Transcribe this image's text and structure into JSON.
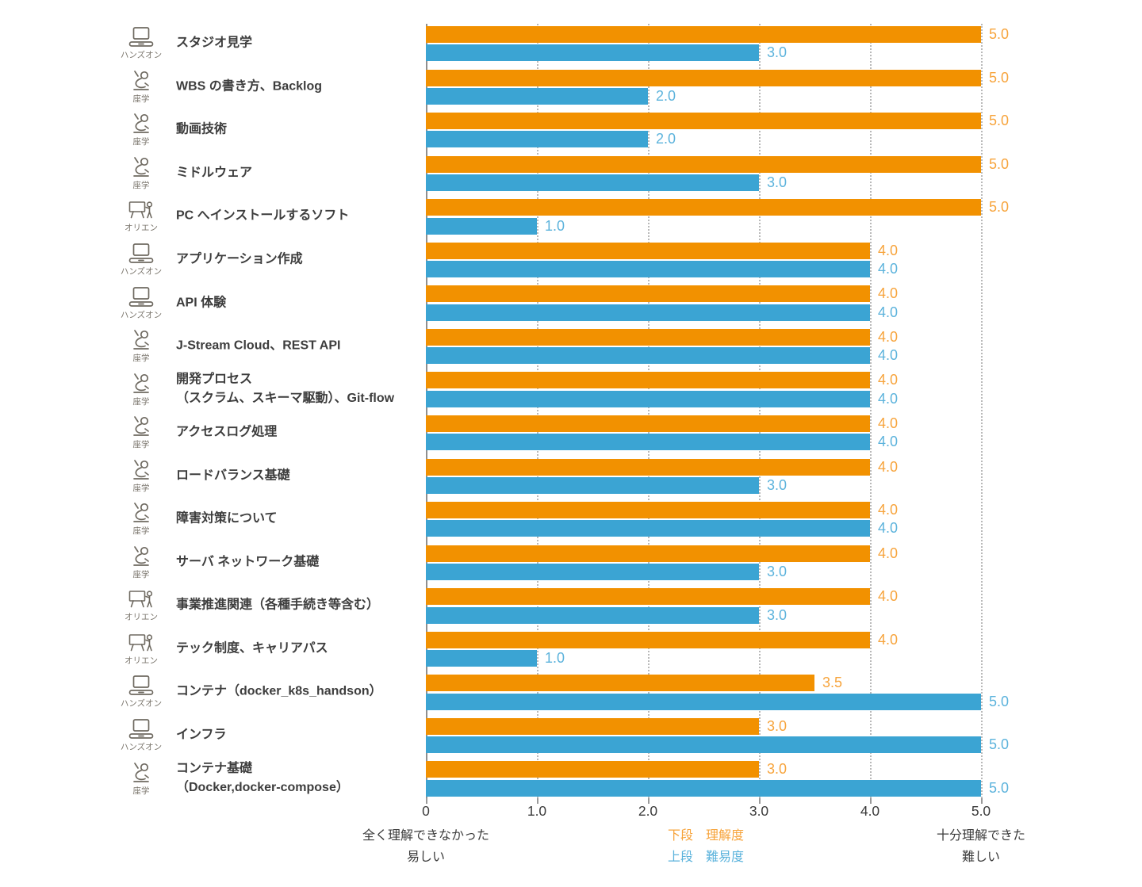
{
  "chart_data": {
    "type": "bar",
    "orientation": "horizontal",
    "xlim": [
      0,
      5
    ],
    "x_ticks": [
      "0",
      "1.0",
      "2.0",
      "3.0",
      "4.0",
      "5.0"
    ],
    "grid": "vertical dotted gridlines at each 1.0 unit",
    "legend_position": "bottom-center",
    "categories": [
      "スタジオ見学",
      "WBS の書き方、Backlog",
      "動画技術",
      "ミドルウェア",
      "PC へインストールするソフト",
      "アプリケーション作成",
      "API 体験",
      "J-Stream Cloud、REST API",
      "開発プロセス\n（スクラム、スキーマ駆動）、Git-flow",
      "アクセスログ処理",
      "ロードバランス基礎",
      "障害対策について",
      "サーバ ネットワーク基礎",
      "事業推進関連（各種手続き等含む）",
      "テック制度、キャリアパス",
      "コンテナ（docker_k8s_handson）",
      "インフラ",
      "コンテナ基礎\n（Docker,docker-compose）"
    ],
    "category_types": [
      "ハンズオン",
      "座学",
      "座学",
      "座学",
      "オリエン",
      "ハンズオン",
      "ハンズオン",
      "座学",
      "座学",
      "座学",
      "座学",
      "座学",
      "座学",
      "オリエン",
      "オリエン",
      "ハンズオン",
      "ハンズオン",
      "座学"
    ],
    "series": [
      {
        "name": "理解度",
        "row_position": "下段",
        "color": "#f29100",
        "label_color": "#f7a43c",
        "values": [
          5.0,
          5.0,
          5.0,
          5.0,
          5.0,
          4.0,
          4.0,
          4.0,
          4.0,
          4.0,
          4.0,
          4.0,
          4.0,
          4.0,
          4.0,
          3.5,
          3.0,
          3.0
        ],
        "labels": [
          "5.0",
          "5.0",
          "5.0",
          "5.0",
          "5.0",
          "4.0",
          "4.0",
          "4.0",
          "4.0",
          "4.0",
          "4.0",
          "4.0",
          "4.0",
          "4.0",
          "4.0",
          "3.5",
          "3.0",
          "3.0"
        ]
      },
      {
        "name": "難易度",
        "row_position": "上段",
        "color": "#3ba4d3",
        "label_color": "#5cb3dc",
        "values": [
          3.0,
          2.0,
          2.0,
          3.0,
          1.0,
          4.0,
          4.0,
          4.0,
          4.0,
          4.0,
          3.0,
          4.0,
          3.0,
          3.0,
          1.0,
          5.0,
          5.0,
          5.0
        ],
        "labels": [
          "3.0",
          "2.0",
          "2.0",
          "3.0",
          "1.0",
          "4.0",
          "4.0",
          "4.0",
          "4.0",
          "4.0",
          "3.0",
          "4.0",
          "3.0",
          "3.0",
          "1.0",
          "5.0",
          "5.0",
          "5.0"
        ]
      }
    ]
  },
  "axis": {
    "ticks": [
      "0",
      "1.0",
      "2.0",
      "3.0",
      "4.0",
      "5.0"
    ]
  },
  "footnotes": {
    "left_line1": "全く理解できなかった",
    "left_line2": "易しい",
    "legend_line1": "下段　理解度",
    "legend_line2": "上段　難易度",
    "right_line1": "十分理解できた",
    "right_line2": "難しい"
  },
  "icons": {
    "ハンズオン": "laptop-icon",
    "座学": "seated-person-icon",
    "オリエン": "presentation-board-icon"
  },
  "colors": {
    "bar_understanding": "#f29100",
    "bar_difficulty": "#3ba4d3",
    "label_understanding": "#f7a43c",
    "label_difficulty": "#5cb3dc",
    "title_text": "#3d3d3d",
    "category_text": "#7b766d",
    "axis_text": "#3b3b3b",
    "gridline": "#b9b9b9",
    "axis_line": "#8f8f8f",
    "icon_stroke": "#6e6960",
    "background": "#ffffff"
  }
}
